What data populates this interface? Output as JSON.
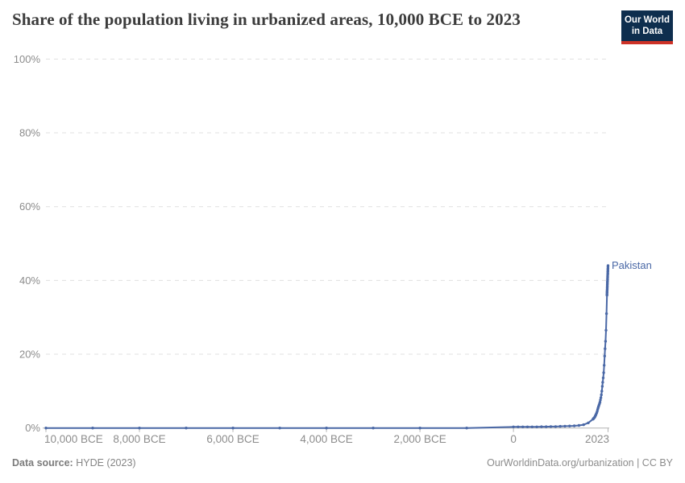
{
  "header": {
    "title": "Share of the population living in urbanized areas, 10,000 BCE to 2023",
    "logo": {
      "line1": "Our World",
      "line2": "in Data",
      "bg_color": "#0e2e4e",
      "accent_color": "#cd3227"
    }
  },
  "footer": {
    "source_label": "Data source:",
    "source_value": "HYDE (2023)",
    "credit": "OurWorldinData.org/urbanization | CC BY"
  },
  "chart_data": {
    "type": "line",
    "title": "Share of the population living in urbanized areas, 10,000 BCE to 2023",
    "xlabel": "",
    "ylabel": "",
    "xlim": [
      -10000,
      2023
    ],
    "ylim": [
      0,
      100
    ],
    "grid": "horizontal-dashed",
    "grid_color": "#e0e0e0",
    "axis_color": "#b3b3b3",
    "tick_label_color": "#8c8c8c",
    "legend_position": "end-of-line",
    "y_ticks": [
      {
        "v": 0,
        "label": "0%"
      },
      {
        "v": 20,
        "label": "20%"
      },
      {
        "v": 40,
        "label": "40%"
      },
      {
        "v": 60,
        "label": "60%"
      },
      {
        "v": 80,
        "label": "80%"
      },
      {
        "v": 100,
        "label": "100%"
      }
    ],
    "x_ticks": [
      {
        "v": -10000,
        "label": "10,000 BCE"
      },
      {
        "v": -8000,
        "label": "8,000 BCE"
      },
      {
        "v": -6000,
        "label": "6,000 BCE"
      },
      {
        "v": -4000,
        "label": "4,000 BCE"
      },
      {
        "v": -2000,
        "label": "2,000 BCE"
      },
      {
        "v": 0,
        "label": "0"
      },
      {
        "v": 2023,
        "label": "2023"
      }
    ],
    "series": [
      {
        "name": "Pakistan",
        "color": "#4a68a6",
        "points": [
          [
            -10000,
            0
          ],
          [
            -9000,
            0
          ],
          [
            -8000,
            0
          ],
          [
            -7000,
            0
          ],
          [
            -6000,
            0
          ],
          [
            -5000,
            0
          ],
          [
            -4000,
            0
          ],
          [
            -3000,
            0
          ],
          [
            -2000,
            0
          ],
          [
            -1000,
            0
          ],
          [
            0,
            0.3
          ],
          [
            100,
            0.3
          ],
          [
            200,
            0.3
          ],
          [
            300,
            0.3
          ],
          [
            400,
            0.3
          ],
          [
            500,
            0.3
          ],
          [
            600,
            0.35
          ],
          [
            700,
            0.35
          ],
          [
            800,
            0.4
          ],
          [
            900,
            0.4
          ],
          [
            1000,
            0.45
          ],
          [
            1100,
            0.5
          ],
          [
            1200,
            0.55
          ],
          [
            1300,
            0.6
          ],
          [
            1400,
            0.7
          ],
          [
            1500,
            0.9
          ],
          [
            1600,
            1.4
          ],
          [
            1700,
            2.4
          ],
          [
            1710,
            2.5
          ],
          [
            1720,
            2.7
          ],
          [
            1730,
            2.8
          ],
          [
            1740,
            3
          ],
          [
            1750,
            3.3
          ],
          [
            1760,
            3.5
          ],
          [
            1770,
            3.8
          ],
          [
            1780,
            4.1
          ],
          [
            1790,
            4.5
          ],
          [
            1800,
            5
          ],
          [
            1810,
            5.4
          ],
          [
            1820,
            5.8
          ],
          [
            1830,
            6.2
          ],
          [
            1840,
            6.6
          ],
          [
            1850,
            7
          ],
          [
            1860,
            7.6
          ],
          [
            1870,
            8.2
          ],
          [
            1880,
            9
          ],
          [
            1890,
            10
          ],
          [
            1900,
            11.3
          ],
          [
            1910,
            12.4
          ],
          [
            1920,
            13.6
          ],
          [
            1930,
            15
          ],
          [
            1940,
            17
          ],
          [
            1950,
            19.5
          ],
          [
            1960,
            21.5
          ],
          [
            1970,
            23.5
          ],
          [
            1980,
            26.5
          ],
          [
            1990,
            31
          ],
          [
            2000,
            36
          ],
          [
            2001,
            36.3
          ],
          [
            2002,
            36.7
          ],
          [
            2003,
            37
          ],
          [
            2004,
            37.4
          ],
          [
            2005,
            37.7
          ],
          [
            2006,
            38.1
          ],
          [
            2007,
            38.4
          ],
          [
            2008,
            38.8
          ],
          [
            2009,
            39.1
          ],
          [
            2010,
            39.5
          ],
          [
            2011,
            39.8
          ],
          [
            2012,
            40.2
          ],
          [
            2013,
            40.5
          ],
          [
            2014,
            40.9
          ],
          [
            2015,
            41.2
          ],
          [
            2016,
            41.6
          ],
          [
            2017,
            41.9
          ],
          [
            2018,
            42.3
          ],
          [
            2019,
            42.6
          ],
          [
            2020,
            43
          ],
          [
            2021,
            43.3
          ],
          [
            2022,
            43.7
          ],
          [
            2023,
            44
          ]
        ]
      }
    ]
  }
}
